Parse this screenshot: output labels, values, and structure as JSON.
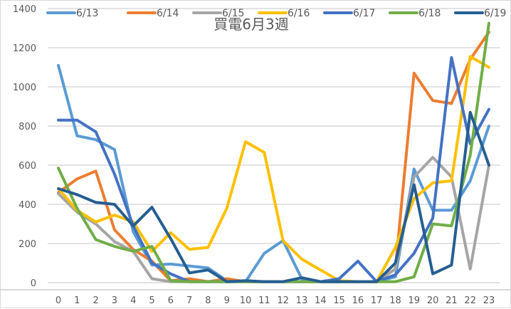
{
  "chart_data": {
    "type": "line",
    "title": "買電6月3週",
    "xlabel": "",
    "ylabel": "",
    "ylim": [
      0,
      1400
    ],
    "yticks": [
      0,
      200,
      400,
      600,
      800,
      1000,
      1200,
      1400
    ],
    "grid": true,
    "legend_position": "top",
    "x": [
      0,
      1,
      2,
      3,
      4,
      5,
      6,
      7,
      8,
      9,
      10,
      11,
      12,
      13,
      14,
      15,
      16,
      17,
      18,
      19,
      20,
      21,
      22,
      23
    ],
    "series": [
      {
        "name": "6/13",
        "color": "#5B9BD5",
        "values": [
          1110,
          750,
          730,
          680,
          260,
          90,
          95,
          85,
          75,
          10,
          5,
          150,
          215,
          20,
          5,
          5,
          5,
          5,
          30,
          580,
          370,
          370,
          520,
          800
        ]
      },
      {
        "name": "6/14",
        "color": "#ED7D31",
        "values": [
          460,
          530,
          570,
          270,
          170,
          110,
          10,
          20,
          5,
          20,
          5,
          5,
          5,
          5,
          5,
          5,
          5,
          5,
          70,
          1070,
          930,
          915,
          1140,
          1280
        ]
      },
      {
        "name": "6/15",
        "color": "#A5A5A5",
        "values": [
          455,
          360,
          300,
          210,
          160,
          20,
          5,
          5,
          5,
          5,
          5,
          5,
          5,
          5,
          5,
          5,
          5,
          5,
          70,
          540,
          640,
          540,
          70,
          600
        ]
      },
      {
        "name": "6/16",
        "color": "#FFC000",
        "values": [
          480,
          370,
          310,
          345,
          310,
          160,
          255,
          170,
          180,
          380,
          720,
          665,
          215,
          120,
          65,
          10,
          5,
          5,
          180,
          430,
          510,
          520,
          1155,
          1100
        ]
      },
      {
        "name": "6/17",
        "color": "#4472C4",
        "values": [
          830,
          830,
          770,
          555,
          290,
          100,
          45,
          5,
          5,
          5,
          5,
          5,
          5,
          5,
          5,
          20,
          110,
          5,
          40,
          150,
          330,
          1150,
          710,
          885
        ]
      },
      {
        "name": "6/18",
        "color": "#70AD47",
        "values": [
          585,
          380,
          220,
          185,
          160,
          185,
          10,
          5,
          5,
          5,
          5,
          5,
          5,
          5,
          5,
          5,
          5,
          5,
          5,
          30,
          300,
          290,
          650,
          1325
        ]
      },
      {
        "name": "6/19",
        "color": "#255E91",
        "values": [
          480,
          450,
          410,
          400,
          290,
          385,
          225,
          50,
          65,
          5,
          10,
          5,
          5,
          25,
          5,
          5,
          5,
          5,
          100,
          500,
          45,
          90,
          870,
          600
        ]
      }
    ]
  }
}
